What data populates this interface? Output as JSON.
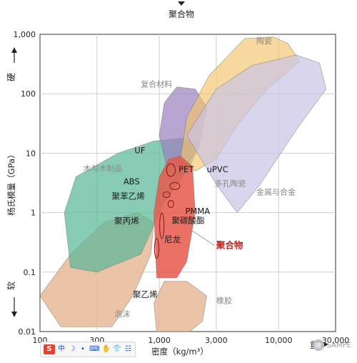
{
  "chart_data": {
    "type": "scatter",
    "subtype": "material-property-map",
    "title": "聚合物",
    "xlabel": "密度（kg/m³）",
    "ylabel": "杨氏模量（GPa）",
    "x_scale": "log",
    "y_scale": "log",
    "xlim": [
      100,
      30000
    ],
    "ylim": [
      0.01,
      1000
    ],
    "x_ticks": [
      100,
      300,
      1000,
      3000,
      10000,
      30000
    ],
    "x_tick_labels": [
      "100",
      "300",
      "1,000",
      "3,000",
      "10,000",
      "30,000"
    ],
    "y_ticks": [
      0.01,
      0.1,
      1,
      10,
      100,
      1000
    ],
    "y_tick_labels": [
      "0.01",
      "0.1",
      "1",
      "10",
      "100",
      "1,000"
    ],
    "grid": true,
    "y_annotations": {
      "top": "硬",
      "bottom": "软"
    },
    "x_annotations": {
      "right": "重"
    },
    "regions": [
      {
        "label": "木与木制品",
        "color": "#5bb89a",
        "approx_x_range": [
          150,
          2200
        ],
        "approx_y_range": [
          0.1,
          20
        ]
      },
      {
        "label": "复合材料",
        "color": "#9b7fbf",
        "approx_x_range": [
          1000,
          2500
        ],
        "approx_y_range": [
          5,
          200
        ]
      },
      {
        "label": "陶瓷",
        "color": "#f2c46b",
        "approx_x_range": [
          1500,
          20000
        ],
        "approx_y_range": [
          5,
          1000
        ]
      },
      {
        "label": "金属与合金",
        "color": "#c9c3e6",
        "approx_x_range": [
          1800,
          25000
        ],
        "approx_y_range": [
          1,
          400
        ]
      },
      {
        "label": "多孔陶瓷",
        "color": "#f2c46b",
        "approx_x_range": [
          1500,
          5000
        ],
        "approx_y_range": [
          3,
          60
        ]
      },
      {
        "label": "泡沫",
        "color": "#e8b896",
        "approx_x_range": [
          100,
          900
        ],
        "approx_y_range": [
          0.01,
          1
        ]
      },
      {
        "label": "橡胶",
        "color": "#e8b896",
        "approx_x_range": [
          900,
          2500
        ],
        "approx_y_range": [
          0.01,
          0.1
        ]
      },
      {
        "label": "聚合物",
        "color": "#e8584b",
        "approx_x_range": [
          900,
          2000
        ],
        "approx_y_range": [
          0.07,
          10
        ]
      }
    ],
    "polymer_labels": [
      "UF",
      "PET",
      "uPVC",
      "ABS",
      "聚苯乙烯",
      "PMMA",
      "聚碳酸酯",
      "聚丙烯",
      "尼龙",
      "聚乙烯"
    ],
    "top_label": "聚合物"
  },
  "toolbar": {
    "items": [
      "中",
      "☽",
      "•",
      "⌨",
      "✋",
      "👕",
      "☷"
    ],
    "brand": "S"
  },
  "watermark": {
    "text": "SAMPE",
    "badge": "微"
  }
}
